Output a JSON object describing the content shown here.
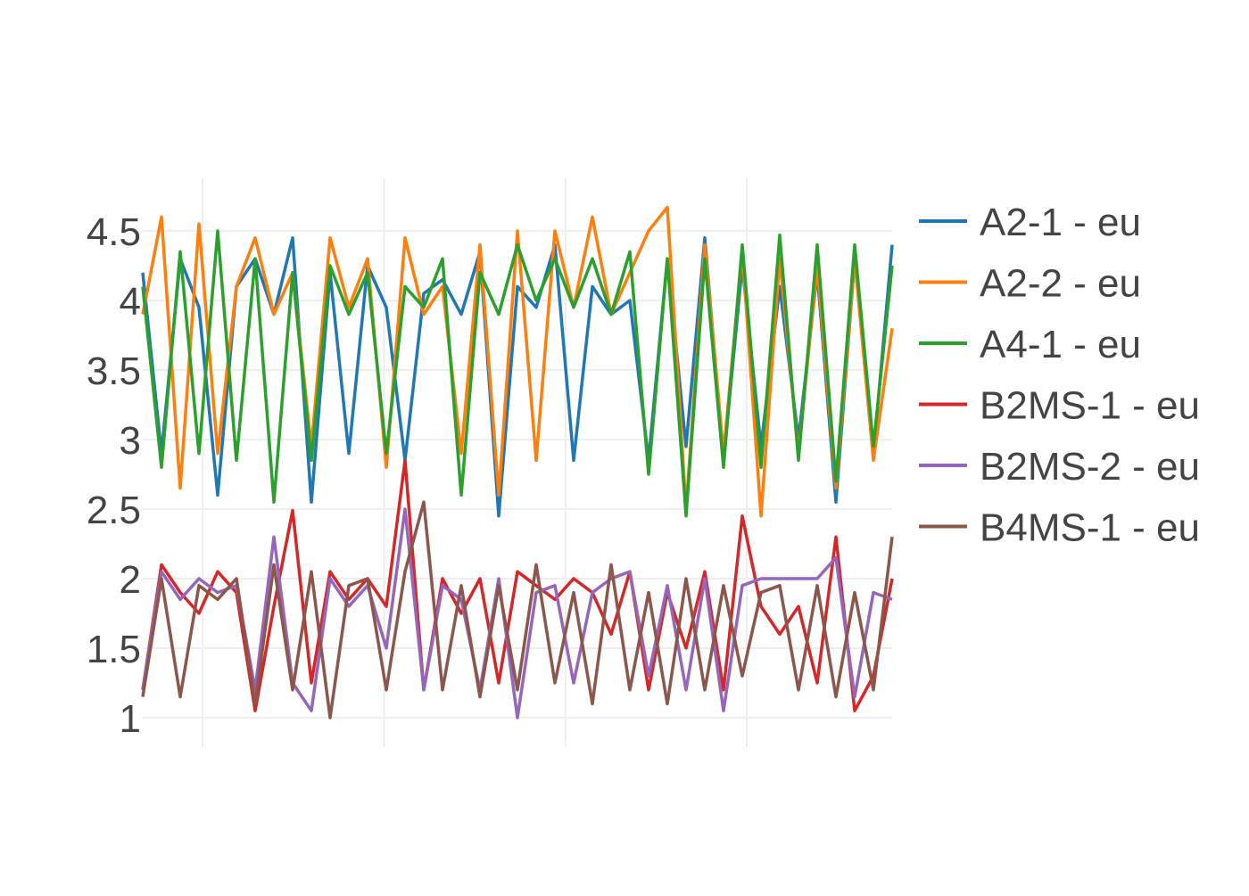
{
  "chart_data": {
    "type": "line",
    "title": "",
    "xlabel": "",
    "ylabel": "",
    "xlim": [
      0,
      1000
    ],
    "ylim": [
      0.85,
      4.87
    ],
    "yticks": [
      1,
      1.5,
      2,
      2.5,
      3,
      3.5,
      4,
      4.5
    ],
    "ytick_labels": [
      "1",
      "1.5",
      "2",
      "2.5",
      "3",
      "3.5",
      "4",
      "4.5"
    ],
    "xgrid": [
      80,
      322,
      564,
      806
    ],
    "grid": true,
    "legend_position": "right",
    "x": [
      0,
      25,
      50,
      75,
      100,
      125,
      150,
      175,
      200,
      225,
      250,
      275,
      300,
      325,
      350,
      375,
      400,
      425,
      450,
      475,
      500,
      525,
      550,
      575,
      600,
      625,
      650,
      675,
      700,
      725,
      750,
      775,
      800,
      825,
      850,
      875,
      900,
      925,
      950,
      975,
      1000
    ],
    "series": [
      {
        "name": "A2-1 - eu",
        "color": "#1f77b4",
        "values": [
          4.2,
          2.9,
          4.3,
          3.95,
          2.6,
          4.1,
          4.3,
          3.9,
          4.45,
          2.55,
          4.2,
          2.9,
          4.25,
          3.95,
          2.85,
          4.05,
          4.15,
          3.9,
          4.35,
          2.45,
          4.1,
          3.95,
          4.4,
          2.85,
          4.1,
          3.9,
          4.0,
          2.85,
          4.3,
          2.95,
          4.45,
          2.85,
          4.25,
          2.95,
          4.1,
          3.0,
          4.2,
          2.55,
          4.3,
          2.9,
          4.4
        ]
      },
      {
        "name": "A2-2 - eu",
        "color": "#ff7f0e",
        "values": [
          3.9,
          4.6,
          2.65,
          4.55,
          2.9,
          4.1,
          4.45,
          3.9,
          4.2,
          2.95,
          4.45,
          3.95,
          4.3,
          2.8,
          4.45,
          3.9,
          4.1,
          2.9,
          4.4,
          2.6,
          4.5,
          2.85,
          4.5,
          3.95,
          4.6,
          3.9,
          4.2,
          4.5,
          4.67,
          2.5,
          4.4,
          2.9,
          4.35,
          2.45,
          4.3,
          2.9,
          4.25,
          2.65,
          4.3,
          2.85,
          3.8
        ]
      },
      {
        "name": "A4-1 - eu",
        "color": "#2ca02c",
        "values": [
          4.1,
          2.8,
          4.35,
          2.9,
          4.5,
          2.85,
          4.3,
          2.55,
          4.2,
          2.85,
          4.25,
          3.9,
          4.2,
          2.9,
          4.1,
          3.95,
          4.3,
          2.6,
          4.2,
          3.9,
          4.4,
          4.0,
          4.3,
          3.95,
          4.3,
          3.9,
          4.35,
          2.75,
          4.3,
          2.45,
          4.3,
          2.8,
          4.4,
          2.8,
          4.47,
          2.85,
          4.4,
          2.7,
          4.4,
          2.95,
          4.25
        ]
      },
      {
        "name": "B2MS-1 - eu",
        "color": "#d62728",
        "values": [
          1.2,
          2.1,
          1.9,
          1.75,
          2.05,
          1.9,
          1.05,
          1.8,
          2.49,
          1.25,
          2.05,
          1.85,
          2.0,
          1.8,
          2.85,
          1.2,
          2.0,
          1.75,
          2.0,
          1.25,
          2.05,
          1.95,
          1.85,
          2.0,
          1.9,
          1.6,
          2.05,
          1.2,
          1.9,
          1.5,
          2.05,
          1.2,
          2.45,
          1.8,
          1.6,
          1.8,
          1.25,
          2.3,
          1.05,
          1.3,
          2.0
        ]
      },
      {
        "name": "B2MS-2 - eu",
        "color": "#9467bd",
        "values": [
          1.2,
          2.05,
          1.85,
          2.0,
          1.9,
          1.95,
          1.2,
          2.3,
          1.25,
          1.05,
          2.0,
          1.8,
          1.95,
          1.5,
          2.5,
          1.2,
          1.95,
          1.85,
          1.2,
          2.0,
          1.0,
          1.9,
          1.95,
          1.25,
          1.9,
          2.0,
          2.05,
          1.3,
          1.95,
          1.2,
          2.0,
          1.05,
          1.95,
          2.0,
          2.0,
          2.0,
          2.0,
          2.15,
          1.15,
          1.9,
          1.85
        ]
      },
      {
        "name": "B4MS-1 - eu",
        "color": "#8c564b",
        "values": [
          1.15,
          2.0,
          1.15,
          1.95,
          1.85,
          2.0,
          1.1,
          2.1,
          1.2,
          2.05,
          1.0,
          1.95,
          2.0,
          1.2,
          2.05,
          2.55,
          1.2,
          1.95,
          1.15,
          1.95,
          1.2,
          2.1,
          1.25,
          1.9,
          1.1,
          2.1,
          1.2,
          1.9,
          1.1,
          2.0,
          1.2,
          1.95,
          1.3,
          1.9,
          1.95,
          1.2,
          1.95,
          1.15,
          1.9,
          1.2,
          2.3
        ]
      }
    ]
  }
}
